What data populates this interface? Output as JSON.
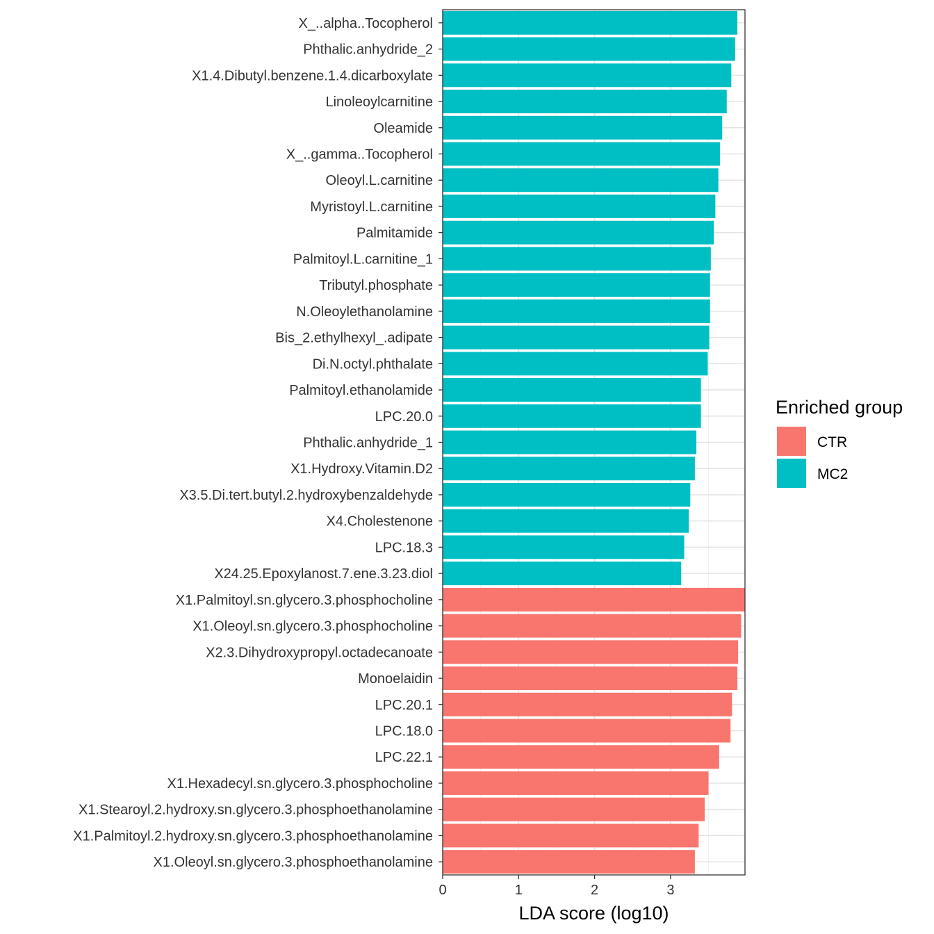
{
  "chart_data": {
    "type": "bar",
    "orientation": "horizontal",
    "xlabel": "LDA score (log10)",
    "xlim": [
      0,
      3.98
    ],
    "x_ticks": [
      0,
      1,
      2,
      3
    ],
    "grid": true,
    "legend": {
      "title": "Enriched group",
      "placement": "right",
      "entries": [
        {
          "name": "CTR",
          "color": "#F8766D"
        },
        {
          "name": "MC2",
          "color": "#00BFC4"
        }
      ]
    },
    "bars": [
      {
        "label": "X_..alpha..Tocopherol",
        "value": 3.88,
        "group": "MC2"
      },
      {
        "label": "Phthalic.anhydride_2",
        "value": 3.85,
        "group": "MC2"
      },
      {
        "label": "X1.4.Dibutyl.benzene.1.4.dicarboxylate",
        "value": 3.8,
        "group": "MC2"
      },
      {
        "label": "Linoleoylcarnitine",
        "value": 3.74,
        "group": "MC2"
      },
      {
        "label": "Oleamide",
        "value": 3.68,
        "group": "MC2"
      },
      {
        "label": "X_..gamma..Tocopherol",
        "value": 3.65,
        "group": "MC2"
      },
      {
        "label": "Oleoyl.L.carnitine",
        "value": 3.63,
        "group": "MC2"
      },
      {
        "label": "Myristoyl.L.carnitine",
        "value": 3.59,
        "group": "MC2"
      },
      {
        "label": "Palmitamide",
        "value": 3.57,
        "group": "MC2"
      },
      {
        "label": "Palmitoyl.L.carnitine_1",
        "value": 3.53,
        "group": "MC2"
      },
      {
        "label": "Tributyl.phosphate",
        "value": 3.52,
        "group": "MC2"
      },
      {
        "label": "N.Oleoylethanolamine",
        "value": 3.52,
        "group": "MC2"
      },
      {
        "label": "Bis_2.ethylhexyl_.adipate",
        "value": 3.51,
        "group": "MC2"
      },
      {
        "label": "Di.N.octyl.phthalate",
        "value": 3.49,
        "group": "MC2"
      },
      {
        "label": "Palmitoyl.ethanolamide",
        "value": 3.4,
        "group": "MC2"
      },
      {
        "label": "LPC.20.0",
        "value": 3.4,
        "group": "MC2"
      },
      {
        "label": "Phthalic.anhydride_1",
        "value": 3.34,
        "group": "MC2"
      },
      {
        "label": "X1.Hydroxy.Vitamin.D2",
        "value": 3.32,
        "group": "MC2"
      },
      {
        "label": "X3.5.Di.tert.butyl.2.hydroxybenzaldehyde",
        "value": 3.26,
        "group": "MC2"
      },
      {
        "label": "X4.Cholestenone",
        "value": 3.24,
        "group": "MC2"
      },
      {
        "label": "LPC.18.3",
        "value": 3.18,
        "group": "MC2"
      },
      {
        "label": "X24.25.Epoxylanost.7.ene.3.23.diol",
        "value": 3.14,
        "group": "MC2"
      },
      {
        "label": "X1.Palmitoyl.sn.glycero.3.phosphocholine",
        "value": 3.98,
        "group": "CTR"
      },
      {
        "label": "X1.Oleoyl.sn.glycero.3.phosphocholine",
        "value": 3.93,
        "group": "CTR"
      },
      {
        "label": "X2.3.Dihydroxypropyl.octadecanoate",
        "value": 3.89,
        "group": "CTR"
      },
      {
        "label": "Monoelaidin",
        "value": 3.88,
        "group": "CTR"
      },
      {
        "label": "LPC.20.1",
        "value": 3.81,
        "group": "CTR"
      },
      {
        "label": "LPC.18.0",
        "value": 3.79,
        "group": "CTR"
      },
      {
        "label": "LPC.22.1",
        "value": 3.64,
        "group": "CTR"
      },
      {
        "label": "X1.Hexadecyl.sn.glycero.3.phosphocholine",
        "value": 3.5,
        "group": "CTR"
      },
      {
        "label": "X1.Stearoyl.2.hydroxy.sn.glycero.3.phosphoethanolamine",
        "value": 3.45,
        "group": "CTR"
      },
      {
        "label": "X1.Palmitoyl.2.hydroxy.sn.glycero.3.phosphoethanolamine",
        "value": 3.37,
        "group": "CTR"
      },
      {
        "label": "X1.Oleoyl.sn.glycero.3.phosphoethanolamine",
        "value": 3.32,
        "group": "CTR"
      }
    ]
  }
}
